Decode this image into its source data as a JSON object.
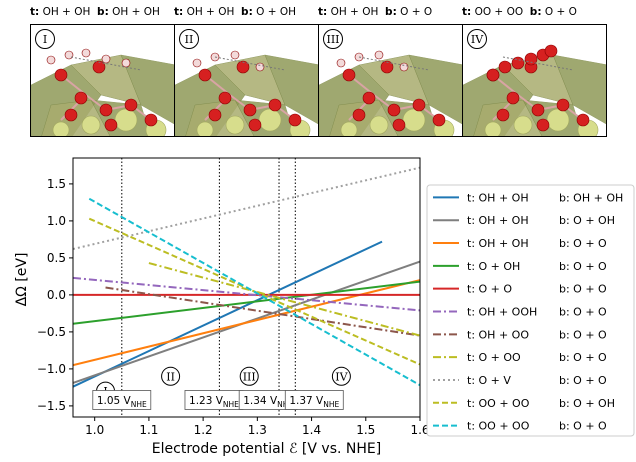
{
  "panels": [
    {
      "roman": "I",
      "t_prefix": "t:",
      "t_text": "OH + OH",
      "b_prefix": "b:",
      "b_text": "OH + OH"
    },
    {
      "roman": "II",
      "t_prefix": "t:",
      "t_text": "OH + OH",
      "b_prefix": "b:",
      "b_text": "O + OH"
    },
    {
      "roman": "III",
      "t_prefix": "t:",
      "t_text": "OH + OH",
      "b_prefix": "b:",
      "b_text": "O + O"
    },
    {
      "roman": "IV",
      "t_prefix": "t:",
      "t_text": "OO + OO",
      "b_prefix": "b:",
      "b_text": "O + O"
    }
  ],
  "chart_data": {
    "type": "line",
    "xlabel": "Electrode potential ℰ   [V vs. NHE]",
    "ylabel": "ΔΩ   [eV]",
    "xlim": [
      0.96,
      1.6
    ],
    "ylim": [
      -1.65,
      1.85
    ],
    "xticks": [
      1.0,
      1.1,
      1.2,
      1.3,
      1.4,
      1.5,
      1.6
    ],
    "xtick_labels": [
      "1.0",
      "1.1",
      "1.2",
      "1.3",
      "1.4",
      "1.5",
      "1.6"
    ],
    "yticks": [
      1.5,
      1.0,
      0.5,
      0.0,
      -0.5,
      -1.0,
      -1.5
    ],
    "ytick_labels": [
      "1.5",
      "1.0",
      "0.5",
      "0.0",
      "−0.5",
      "−1.0",
      "−1.5"
    ],
    "vlines": [
      1.05,
      1.23,
      1.34,
      1.37
    ],
    "regions": [
      {
        "label": "I",
        "x": 1.02,
        "y": -1.3
      },
      {
        "label": "II",
        "x": 1.14,
        "y": -1.1
      },
      {
        "label": "III",
        "x": 1.285,
        "y": -1.1
      },
      {
        "label": "IV",
        "x": 1.455,
        "y": -1.1
      }
    ],
    "potentials": [
      {
        "value": "1.05",
        "unit": "V",
        "sub": "NHE",
        "x": 1.05
      },
      {
        "value": "1.23",
        "unit": "V",
        "sub": "NHE",
        "x": 1.22
      },
      {
        "value": "1.34",
        "unit": "V",
        "sub": "NHE",
        "x": 1.32
      },
      {
        "value": "1.37",
        "unit": "V",
        "sub": "NHE",
        "x": 1.405
      }
    ],
    "series": [
      {
        "t": "t:  OH + OH",
        "b": "b:  OH + OH",
        "color": "#1f77b4",
        "dash": "solid",
        "x": [
          0.96,
          1.53
        ],
        "y": [
          -1.24,
          0.72
        ]
      },
      {
        "t": "t:  OH + OH",
        "b": "b:  O + OH",
        "color": "#7f7f7f",
        "dash": "solid",
        "x": [
          0.96,
          1.6
        ],
        "y": [
          -1.19,
          0.45
        ]
      },
      {
        "t": "t:  OH + OH",
        "b": "b:  O + O",
        "color": "#ff7f0e",
        "dash": "solid",
        "x": [
          0.96,
          1.6
        ],
        "y": [
          -0.95,
          0.2
        ]
      },
      {
        "t": "t:  O + OH",
        "b": "b:  O + O",
        "color": "#2ca02c",
        "dash": "solid",
        "x": [
          0.96,
          1.6
        ],
        "y": [
          -0.39,
          0.18
        ]
      },
      {
        "t": "t:  O + O",
        "b": "b:  O + O",
        "color": "#d62728",
        "dash": "solid",
        "x": [
          0.96,
          1.6
        ],
        "y": [
          0.0,
          0.0
        ]
      },
      {
        "t": "t:  OH + OOH",
        "b": "b:  O + O",
        "color": "#9467bd",
        "dash": "dashdot",
        "x": [
          0.96,
          1.6
        ],
        "y": [
          0.23,
          -0.21
        ]
      },
      {
        "t": "t:  OH + OO",
        "b": "b:  O + O",
        "color": "#8c564b",
        "dash": "dashdot",
        "x": [
          1.02,
          1.6
        ],
        "y": [
          0.1,
          -0.55
        ]
      },
      {
        "t": "t:  O + OO",
        "b": "b:  O + O",
        "color": "#bcbd22",
        "dash": "dashdot",
        "x": [
          1.1,
          1.6
        ],
        "y": [
          0.43,
          -0.55
        ]
      },
      {
        "t": "t:  O + V",
        "b": "b:  O + O",
        "color": "#a0a0a0",
        "dash": "dotted",
        "x": [
          0.96,
          1.6
        ],
        "y": [
          0.62,
          1.72
        ]
      },
      {
        "t": "t:  OO + OO",
        "b": "b:  O + OH",
        "color": "#bcbd22",
        "dash": "dashed",
        "x": [
          0.99,
          1.6
        ],
        "y": [
          1.03,
          -0.94
        ]
      },
      {
        "t": "t:  OO + OO",
        "b": "b:  O + O",
        "color": "#17becf",
        "dash": "dashed",
        "x": [
          0.99,
          1.6
        ],
        "y": [
          1.3,
          -1.22
        ]
      }
    ]
  }
}
